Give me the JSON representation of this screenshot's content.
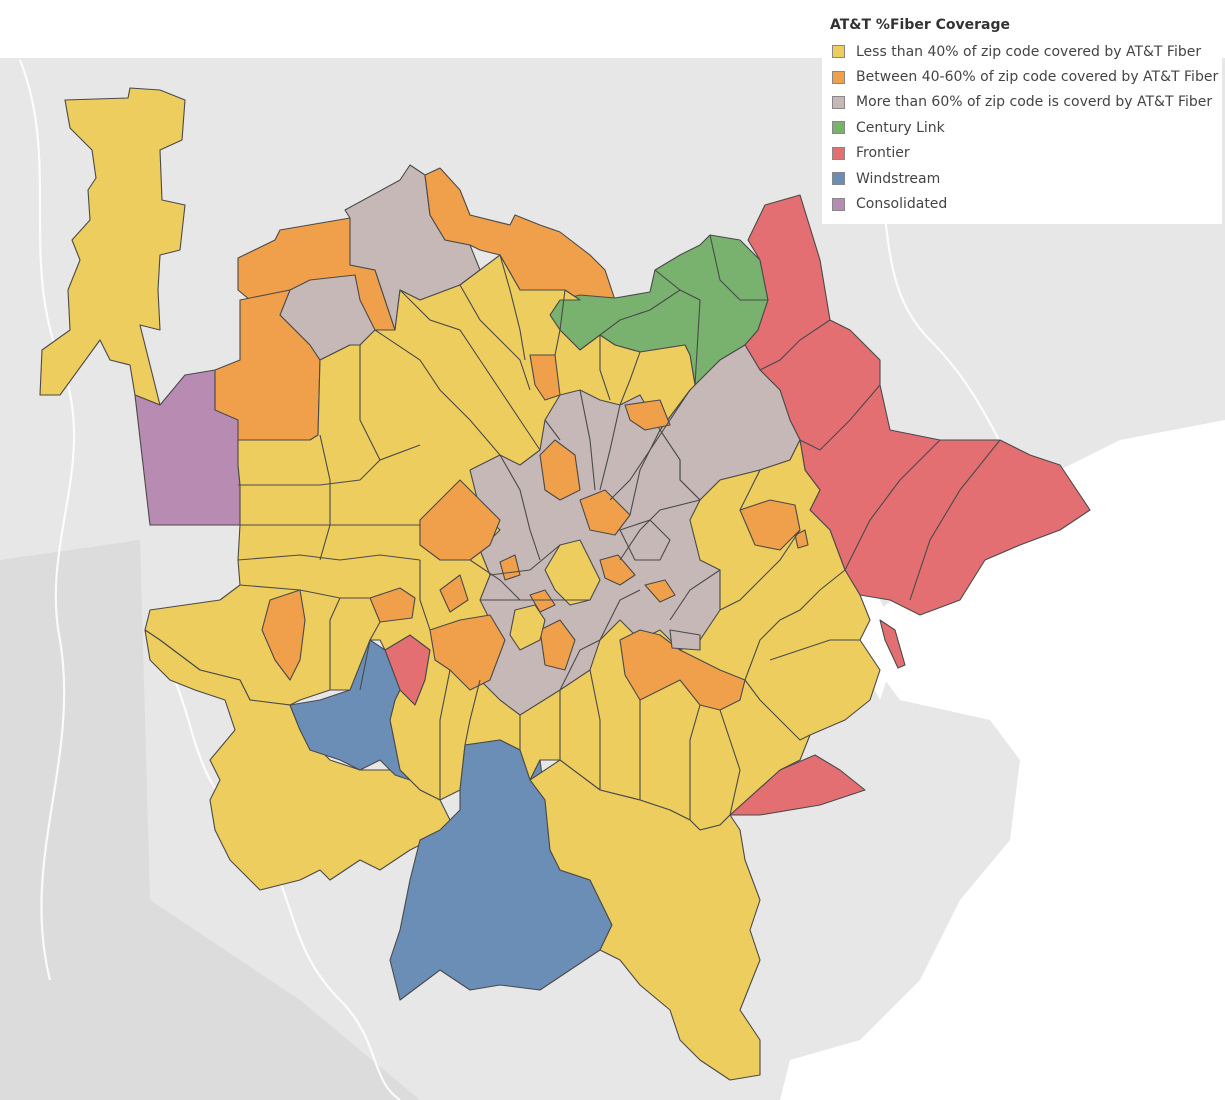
{
  "legend": {
    "title": "AT&T %Fiber Coverage",
    "items": [
      {
        "label": "Less than 40% of zip code covered by AT&T Fiber",
        "color": "#edcd5e"
      },
      {
        "label": "Between 40-60% of zip code covered by AT&T Fiber",
        "color": "#f0a04b"
      },
      {
        "label": "More than 60% of zip code is coverd by AT&T Fiber",
        "color": "#c6b8b6"
      },
      {
        "label": "Century Link",
        "color": "#79b26f"
      },
      {
        "label": "Frontier",
        "color": "#e36f72"
      },
      {
        "label": "Windstream",
        "color": "#6b8eb6"
      },
      {
        "label": "Consolidated",
        "color": "#b88bb3"
      }
    ]
  },
  "colors": {
    "base_map": "#e7e7e7",
    "water": "#ffffff",
    "border": "#4a4a4a"
  }
}
